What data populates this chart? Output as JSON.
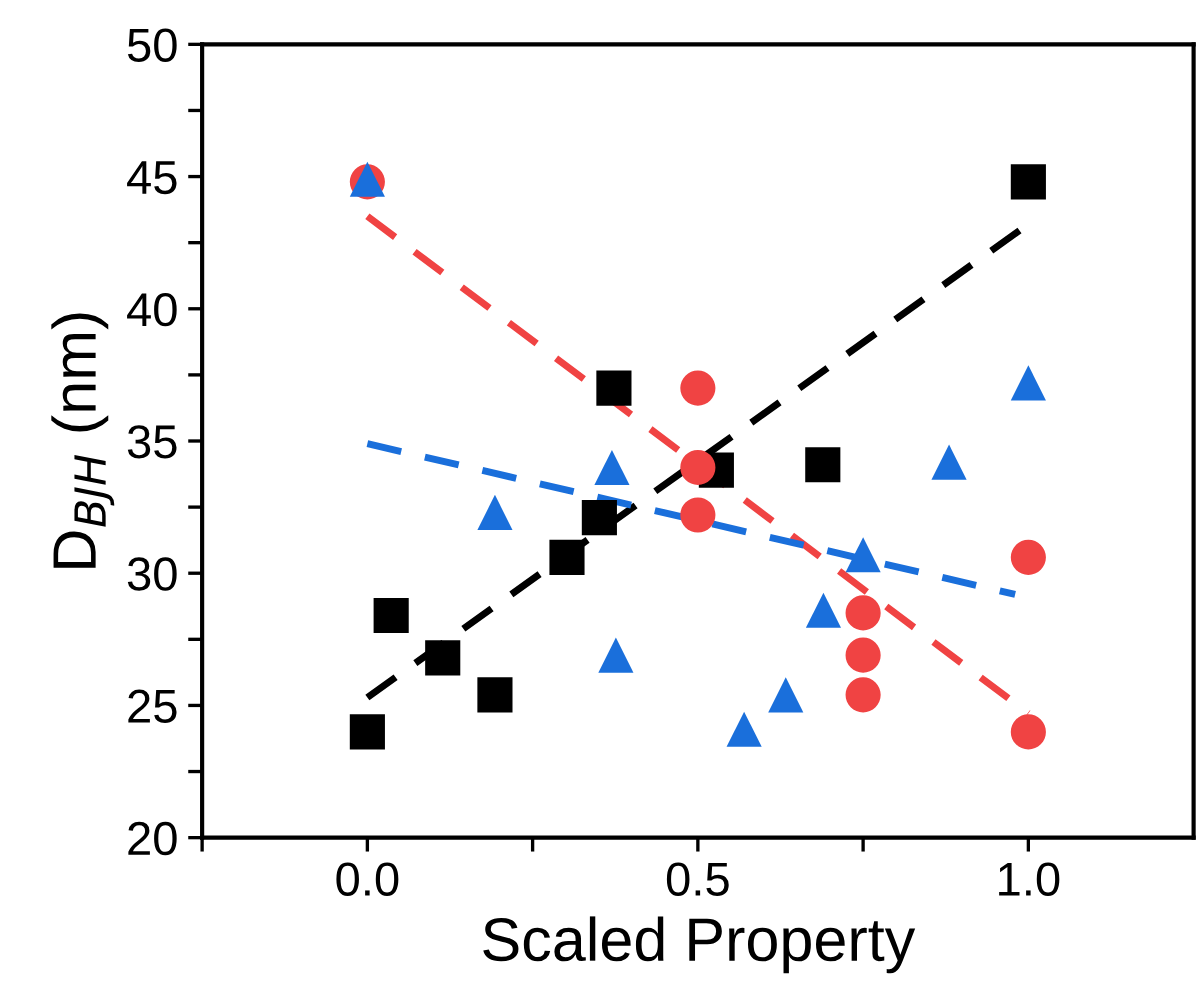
{
  "chart_data": {
    "type": "scatter",
    "xlabel": "Scaled Property",
    "ylabel": "D$_{BJH}$ (nm)",
    "xlim": [
      -0.25,
      1.25
    ],
    "ylim": [
      20,
      50
    ],
    "xticks": [
      {
        "value": -0.25,
        "label": null
      },
      {
        "value": 0,
        "label": "0.0"
      },
      {
        "value": 0.25,
        "label": null
      },
      {
        "value": 0.5,
        "label": "0.5"
      },
      {
        "value": 0.75,
        "label": null
      },
      {
        "value": 1,
        "label": "1.0"
      }
    ],
    "yticks": [
      20,
      {
        "value": 22.5,
        "label": null
      },
      25,
      {
        "value": 27.5,
        "label": null
      },
      30,
      {
        "value": 32.5,
        "label": null
      },
      35,
      {
        "value": 37.5,
        "label": null
      },
      40,
      {
        "value": 42.5,
        "label": null
      },
      45,
      {
        "value": 47.5,
        "label": null
      },
      50
    ],
    "grid": false,
    "legend": false,
    "series": [
      {
        "color": "#000000",
        "marker": "square",
        "x": [
          0,
          0.036,
          0.114,
          0.193,
          0.302,
          0.351,
          0.373,
          0.528,
          0.689,
          1.0
        ],
        "values": [
          24.0,
          28.4,
          26.8,
          25.4,
          30.6,
          32.1,
          37.0,
          33.9,
          34.1,
          44.8
        ]
      },
      {
        "color": "#f04343",
        "marker": "circle",
        "x": [
          0,
          0.5,
          0.5,
          0.5,
          0.75,
          0.75,
          0.75,
          1.0,
          1.0
        ],
        "values": [
          44.8,
          37.0,
          34.0,
          32.2,
          28.5,
          26.9,
          25.4,
          30.6,
          24.0
        ]
      },
      {
        "color": "#1a6fdb",
        "marker": "triangle",
        "x": [
          0,
          1.0,
          0.37,
          0.88,
          0.193,
          0.75,
          0.69,
          0.376,
          0.633,
          0.57
        ],
        "values": [
          44.9,
          37.2,
          34.0,
          34.2,
          32.3,
          30.7,
          28.6,
          26.9,
          25.4,
          24.1
        ]
      },
      {
        "type": "line",
        "color": "#000000",
        "line_style": "dashed",
        "marker": "none",
        "x": [
          0,
          1.0
        ],
        "values": [
          25.3,
          43.2
        ]
      },
      {
        "type": "line",
        "color": "#f04343",
        "line_style": "dashed",
        "marker": "none",
        "x": [
          0,
          1.0
        ],
        "values": [
          43.5,
          24.7
        ]
      },
      {
        "type": "line",
        "color": "#1a6fdb",
        "line_style": "dashed",
        "marker": "none",
        "x": [
          0,
          0.98
        ],
        "values": [
          34.9,
          29.2
        ]
      }
    ]
  }
}
